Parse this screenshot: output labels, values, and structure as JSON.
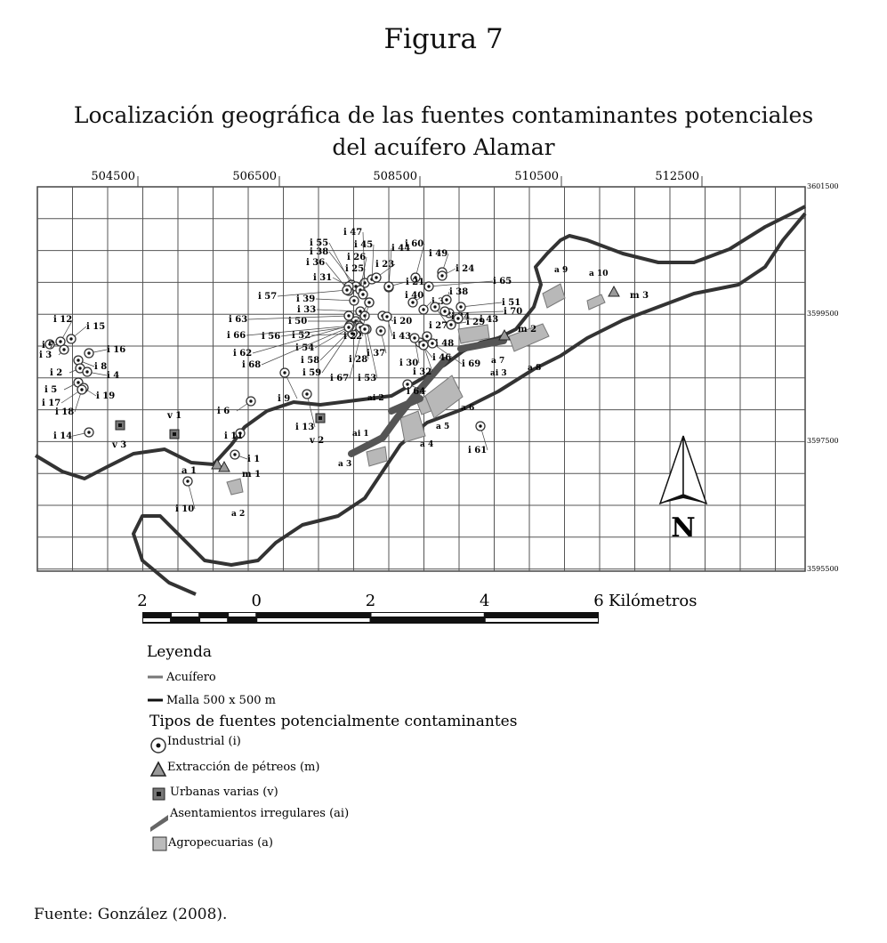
{
  "figure_label": "Figura 7",
  "title_line1": "Localización geográfica de las fuentes contaminantes potenciales",
  "title_line2": "del acuífero Alamar",
  "axes": {
    "x_ticks": [
      "504500",
      "506500",
      "508500",
      "510500",
      "512500"
    ],
    "y_ticks": [
      "3601500",
      "3599500",
      "3597500",
      "3595500"
    ]
  },
  "industrial": [
    "i 7",
    "i 12",
    "i 15",
    "i 3",
    "i 16",
    "i 8",
    "i 2",
    "i 4",
    "i 5",
    "i 17",
    "i 19",
    "i 18",
    "i 14",
    "i 6",
    "i 11",
    "i 1",
    "i 10",
    "i 9",
    "i 13",
    "i 61",
    "i 47",
    "i 45",
    "i 55",
    "i 38",
    "i 26",
    "i 36",
    "i 25",
    "i 23",
    "i 44",
    "i 60",
    "i 49",
    "i 24",
    "i 31",
    "i 57",
    "i 39",
    "i 33",
    "i 63",
    "i 50",
    "i 66",
    "i 56",
    "i 52",
    "i 54",
    "i 62",
    "i 68",
    "i 58",
    "i 59",
    "i 67",
    "i 53",
    "i 22",
    "i 28",
    "i 37",
    "i 20",
    "i 43",
    "i 21",
    "i 40",
    "i 35",
    "i 38",
    "i 65",
    "i 51",
    "i 70",
    "i 34",
    "i 27",
    "i 29",
    "i 43",
    "i 48",
    "i 46",
    "i 30",
    "i 32",
    "i 69",
    "i 64"
  ],
  "mining": [
    "a 1",
    "m 1",
    "m 2",
    "m 3"
  ],
  "urban": [
    "v 1",
    "v 3",
    "v 2"
  ],
  "settlements": [
    "ai 1",
    "ai 2",
    "ai 3"
  ],
  "agricultural": [
    "a 2",
    "a 3",
    "a 4",
    "a 5",
    "a 6",
    "a 7",
    "a 8",
    "a 9",
    "a 10"
  ],
  "north": "N",
  "scale": {
    "labels": [
      "2",
      "0",
      "2",
      "4",
      "6"
    ],
    "unit": "Kilómetros"
  },
  "legend": {
    "title": "Leyenda",
    "aquifer": "Acuífero",
    "grid": "Malla 500 x 500 m",
    "types_title": "Tipos de fuentes potencialmente contaminantes",
    "industrial": "Industrial (i)",
    "mining": "Extracción de pétreos (m)",
    "urban": "Urbanas varias (v)",
    "settlements": "Asentamientos irregulares (ai)",
    "agricultural": "Agropecuarias (a)"
  },
  "colors": {
    "boundary": "#333333",
    "grid": "#555555",
    "agri": "#b8b8b8",
    "settlement": "#555555"
  },
  "source": "Fuente: González (2008)."
}
